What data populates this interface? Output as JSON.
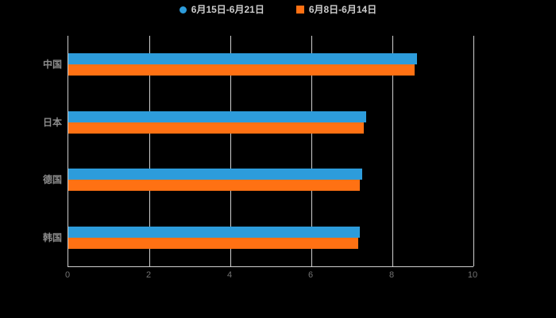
{
  "legend": {
    "items": [
      {
        "label": "6月15日-6月21日",
        "color": "#2D9CDB",
        "shape": "circle"
      },
      {
        "label": "6月8日-6月14日",
        "color": "#FF7113",
        "shape": "square"
      }
    ]
  },
  "chart_data": {
    "type": "bar",
    "orientation": "horizontal",
    "title": "",
    "xlabel": "",
    "ylabel": "",
    "categories": [
      "中国",
      "日本",
      "德国",
      "韩国"
    ],
    "series": [
      {
        "name": "6月15日-6月21日",
        "color": "#2D9CDB",
        "values": [
          8.6,
          7.35,
          7.25,
          7.2
        ]
      },
      {
        "name": "6月8日-6月14日",
        "color": "#FF7113",
        "values": [
          8.55,
          7.3,
          7.2,
          7.15
        ]
      }
    ],
    "xlim": [
      0,
      10
    ],
    "xticks": [
      0,
      2,
      4,
      6,
      8,
      10
    ],
    "grid": true,
    "legend_position": "top",
    "background": "#000000"
  },
  "colors": {
    "background": "#000000",
    "grid": "#cfcfcf",
    "axis": "#cfcfcf",
    "tick_text": "#737373",
    "category_text": "#8c8c8c",
    "legend_text": "#cccccc"
  }
}
